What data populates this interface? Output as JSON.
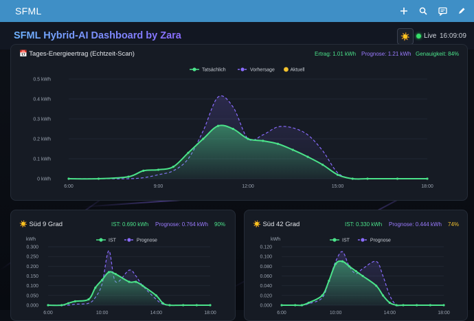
{
  "app": {
    "title": "SFML"
  },
  "topbar": {
    "icons": [
      "add-icon",
      "search-icon",
      "chat-icon",
      "edit-icon"
    ]
  },
  "header": {
    "title": "SFML Hybrid-AI Dashboard by Zara",
    "live_label": "Live",
    "time": "16:09:09"
  },
  "main_card": {
    "title": "📅 Tages-Energieertrag (Echtzeit-Scan)",
    "stats": {
      "ertrag": "Ertrag: 1.01 kWh",
      "prognose": "Prognose: 1.21 kWh",
      "genauigkeit": "Genauigkeit: 84%"
    }
  },
  "card_sued9": {
    "title": "☀️ Süd 9 Grad",
    "stats": {
      "ist": "IST: 0.690 kWh",
      "prognose": "Prognose: 0.764 kWh",
      "pct": "90%"
    }
  },
  "card_sued42": {
    "title": "☀️ Süd 42 Grad",
    "stats": {
      "ist": "IST: 0.330 kWh",
      "prognose": "Prognose: 0.444 kWh",
      "pct": "74%"
    }
  },
  "colors": {
    "actual": "#4be38a",
    "forecast": "#8a6cff",
    "current": "#f2c12e",
    "ertrag": "#4be38a",
    "prognose": "#9b7bff",
    "genauigkeit": "#4be38a",
    "pct_good": "#4be38a",
    "pct_warn": "#f2c12e"
  },
  "chart_data": [
    {
      "type": "area",
      "legend": [
        "Tatsächlich",
        "Vorhersage",
        "Aktuell"
      ],
      "x": [
        6,
        7,
        8,
        9,
        10,
        11,
        12,
        13,
        14,
        15,
        16,
        17,
        18
      ],
      "x_ticks": [
        "6:00",
        "9:00",
        "12:00",
        "15:00",
        "18:00"
      ],
      "y_ticks": [
        "0 kWh",
        "0.1 kWh",
        "0.2 kWh",
        "0.3 kWh",
        "0.4 kWh",
        "0.5 kWh"
      ],
      "ylim": [
        0,
        0.5
      ],
      "series": [
        {
          "name": "Tatsächlich",
          "x": [
            6,
            7,
            8,
            8.5,
            9,
            9.5,
            10,
            10.5,
            11,
            11.5,
            12,
            12.5,
            13,
            13.5,
            14,
            14.5,
            15,
            15.5,
            16,
            17,
            18
          ],
          "values": [
            0,
            0,
            0.01,
            0.04,
            0.045,
            0.06,
            0.13,
            0.2,
            0.265,
            0.25,
            0.2,
            0.19,
            0.175,
            0.145,
            0.11,
            0.07,
            0.02,
            0,
            0,
            0,
            0
          ]
        },
        {
          "name": "Vorhersage",
          "x": [
            6,
            7,
            8,
            8.5,
            9,
            9.5,
            10,
            10.5,
            11,
            11.5,
            12,
            12.5,
            13,
            13.5,
            14,
            14.5,
            15,
            15.5,
            16,
            17,
            18
          ],
          "values": [
            0,
            0,
            0,
            0.005,
            0.02,
            0.04,
            0.1,
            0.24,
            0.41,
            0.36,
            0.2,
            0.22,
            0.26,
            0.255,
            0.22,
            0.14,
            0.03,
            0,
            0,
            0,
            0
          ]
        }
      ]
    },
    {
      "type": "area",
      "legend": [
        "IST",
        "Prognose"
      ],
      "x_ticks": [
        "6:00",
        "10:00",
        "14:00",
        "18:00"
      ],
      "y_ticks": [
        "0.000",
        "0.050",
        "0.100",
        "0.150",
        "0.200",
        "0.250",
        "0.300"
      ],
      "ylabel": "kWh",
      "ylim": [
        0,
        0.3
      ],
      "series": [
        {
          "name": "IST",
          "x": [
            6,
            7,
            7.5,
            8,
            9,
            9.5,
            10,
            10.5,
            11,
            12,
            12.5,
            13,
            14,
            14.5,
            15,
            16,
            17,
            18
          ],
          "values": [
            0,
            0,
            0.01,
            0.02,
            0.03,
            0.09,
            0.13,
            0.17,
            0.16,
            0.12,
            0.12,
            0.1,
            0.05,
            0.01,
            0,
            0,
            0,
            0
          ]
        },
        {
          "name": "Prognose",
          "x": [
            6,
            7,
            7.5,
            8,
            9,
            9.5,
            10,
            10.5,
            11,
            12,
            12.5,
            13,
            14,
            14.5,
            15,
            16,
            17,
            18
          ],
          "values": [
            0,
            0,
            0,
            0.005,
            0.01,
            0.04,
            0.11,
            0.28,
            0.12,
            0.18,
            0.15,
            0.1,
            0.03,
            0.005,
            0,
            0,
            0,
            0
          ]
        }
      ]
    },
    {
      "type": "area",
      "legend": [
        "IST",
        "Prognose"
      ],
      "x_ticks": [
        "6:00",
        "10:00",
        "14:00",
        "18:00"
      ],
      "y_ticks": [
        "0.000",
        "0.020",
        "0.040",
        "0.060",
        "0.080",
        "0.100",
        "0.120"
      ],
      "ylabel": "kWh",
      "ylim": [
        0,
        0.12
      ],
      "series": [
        {
          "name": "IST",
          "x": [
            6,
            7,
            7.5,
            8,
            9,
            9.5,
            10,
            10.5,
            11,
            11.5,
            12,
            13,
            13.5,
            14,
            14.5,
            15,
            16,
            17,
            18
          ],
          "values": [
            0,
            0,
            0,
            0.005,
            0.02,
            0.05,
            0.085,
            0.09,
            0.08,
            0.07,
            0.06,
            0.04,
            0.02,
            0.005,
            0,
            0,
            0,
            0,
            0
          ]
        },
        {
          "name": "Prognose",
          "x": [
            6,
            7,
            7.5,
            8,
            9,
            9.5,
            10,
            10.5,
            11,
            11.5,
            12,
            13,
            13.5,
            14,
            14.5,
            15,
            16,
            17,
            18
          ],
          "values": [
            0,
            0,
            0,
            0.003,
            0.015,
            0.05,
            0.09,
            0.11,
            0.08,
            0.065,
            0.075,
            0.09,
            0.06,
            0.02,
            0,
            0,
            0,
            0,
            0
          ]
        }
      ]
    }
  ]
}
